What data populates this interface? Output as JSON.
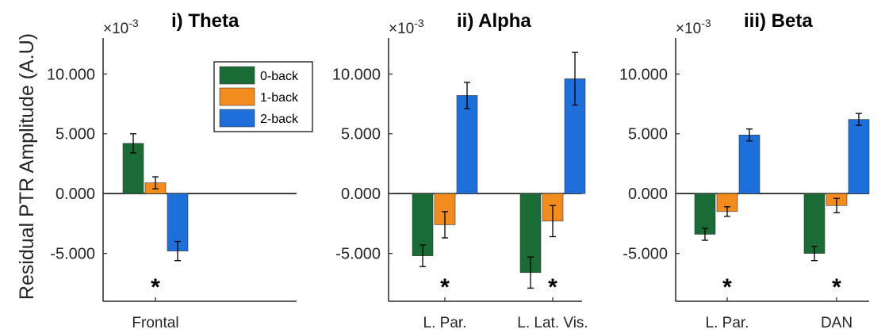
{
  "ylabel": "Residual PTR Amplitude (A.U)",
  "exponent_label": "×10-3",
  "yticks": [
    -5,
    0,
    5,
    10
  ],
  "ytick_labels": [
    "-5.000",
    "0.000",
    "5.000",
    "10.000"
  ],
  "ylim": [
    -9,
    13
  ],
  "legend": [
    {
      "label": "0-back",
      "color": "#1b6b37"
    },
    {
      "label": "1-back",
      "color": "#f28c1f"
    },
    {
      "label": "2-back",
      "color": "#1f6fdb"
    }
  ],
  "chart_data": [
    {
      "type": "bar",
      "title": "i) Theta",
      "categories": [
        "Frontal"
      ],
      "significance": [
        true
      ],
      "series": [
        {
          "name": "0-back",
          "values": [
            4.2
          ],
          "errors": [
            0.8
          ]
        },
        {
          "name": "1-back",
          "values": [
            0.9
          ],
          "errors": [
            0.5
          ]
        },
        {
          "name": "2-back",
          "values": [
            -4.8
          ],
          "errors": [
            0.8
          ]
        }
      ]
    },
    {
      "type": "bar",
      "title": "ii) Alpha",
      "categories": [
        "L. Par.",
        "L. Lat. Vis."
      ],
      "significance": [
        true,
        true
      ],
      "series": [
        {
          "name": "0-back",
          "values": [
            -5.2,
            -6.6
          ],
          "errors": [
            0.9,
            1.3
          ]
        },
        {
          "name": "1-back",
          "values": [
            -2.6,
            -2.3
          ],
          "errors": [
            1.1,
            1.3
          ]
        },
        {
          "name": "2-back",
          "values": [
            8.2,
            9.6
          ],
          "errors": [
            1.1,
            2.2
          ]
        }
      ]
    },
    {
      "type": "bar",
      "title": "iii) Beta",
      "categories": [
        "L. Par.",
        "DAN"
      ],
      "significance": [
        true,
        true
      ],
      "series": [
        {
          "name": "0-back",
          "values": [
            -3.4,
            -5.0
          ],
          "errors": [
            0.5,
            0.6
          ]
        },
        {
          "name": "1-back",
          "values": [
            -1.5,
            -1.0
          ],
          "errors": [
            0.4,
            0.6
          ]
        },
        {
          "name": "2-back",
          "values": [
            4.9,
            6.2
          ],
          "errors": [
            0.5,
            0.5
          ]
        }
      ]
    }
  ]
}
